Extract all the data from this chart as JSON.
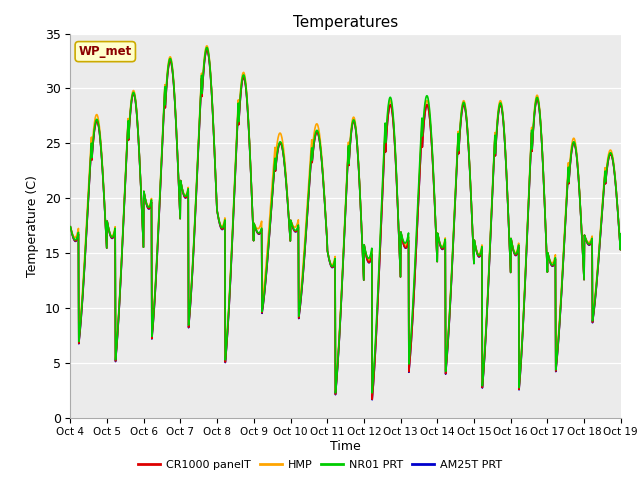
{
  "title": "Temperatures",
  "xlabel": "Time",
  "ylabel": "Temperature (C)",
  "ylim": [
    0,
    35
  ],
  "annotation": "WP_met",
  "bg_color": "#ebebeb",
  "fig_color": "#ffffff",
  "tick_labels": [
    "Oct 4",
    "Oct 5",
    "Oct 6",
    "Oct 7",
    "Oct 8",
    "Oct 9",
    "Oct 10",
    "Oct 11",
    "Oct 12",
    "Oct 13",
    "Oct 14",
    "Oct 15",
    "Oct 16",
    "Oct 17",
    "Oct 18",
    "Oct 19"
  ],
  "series": [
    {
      "label": "CR1000 panelT",
      "color": "#dd0000",
      "lw": 1.2,
      "zorder": 4
    },
    {
      "label": "HMP",
      "color": "#ffa500",
      "lw": 1.2,
      "zorder": 3
    },
    {
      "label": "NR01 PRT",
      "color": "#00cc00",
      "lw": 1.2,
      "zorder": 5
    },
    {
      "label": "AM25T PRT",
      "color": "#0000cc",
      "lw": 1.2,
      "zorder": 2
    }
  ],
  "n_days": 15,
  "samples_per_day": 96,
  "day_min_base": [
    6.5,
    4.8,
    7.2,
    8.2,
    5.0,
    9.5,
    9.0,
    2.0,
    1.5,
    4.0,
    3.8,
    2.5,
    2.3,
    4.0,
    8.5
  ],
  "day_max_base": [
    27.0,
    29.5,
    32.5,
    33.5,
    31.0,
    25.0,
    26.0,
    27.0,
    28.5,
    28.5,
    28.5,
    28.5,
    29.0,
    25.0,
    24.0
  ],
  "hmp_extra_day": [
    0.8,
    0.4,
    0.5,
    0.5,
    0.6,
    1.2,
    1.0,
    0.5,
    0.5,
    0.5,
    0.5,
    0.5,
    0.5,
    0.6,
    0.5
  ],
  "nr01_extra_day": [
    0.4,
    0.3,
    0.5,
    0.5,
    0.5,
    0.3,
    0.4,
    0.3,
    1.5,
    1.8,
    0.5,
    0.4,
    0.4,
    0.3,
    0.3
  ]
}
